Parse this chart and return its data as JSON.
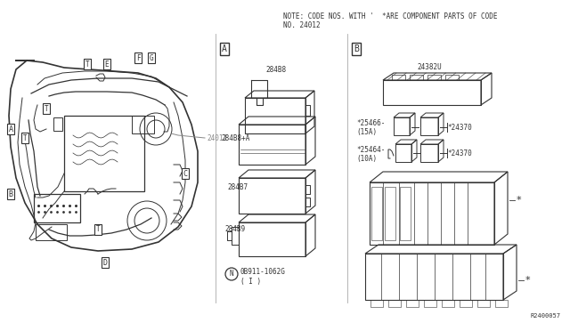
{
  "bg_color": "#ffffff",
  "note_line1": "NOTE: CODE NOS. WITH '  *ARE COMPONENT PARTS OF CODE",
  "note_line2": "NO. 24012",
  "ref_code": "R2400057",
  "color_dark": "#1a1a1a",
  "color_gray": "#888888",
  "color_line": "#333333"
}
